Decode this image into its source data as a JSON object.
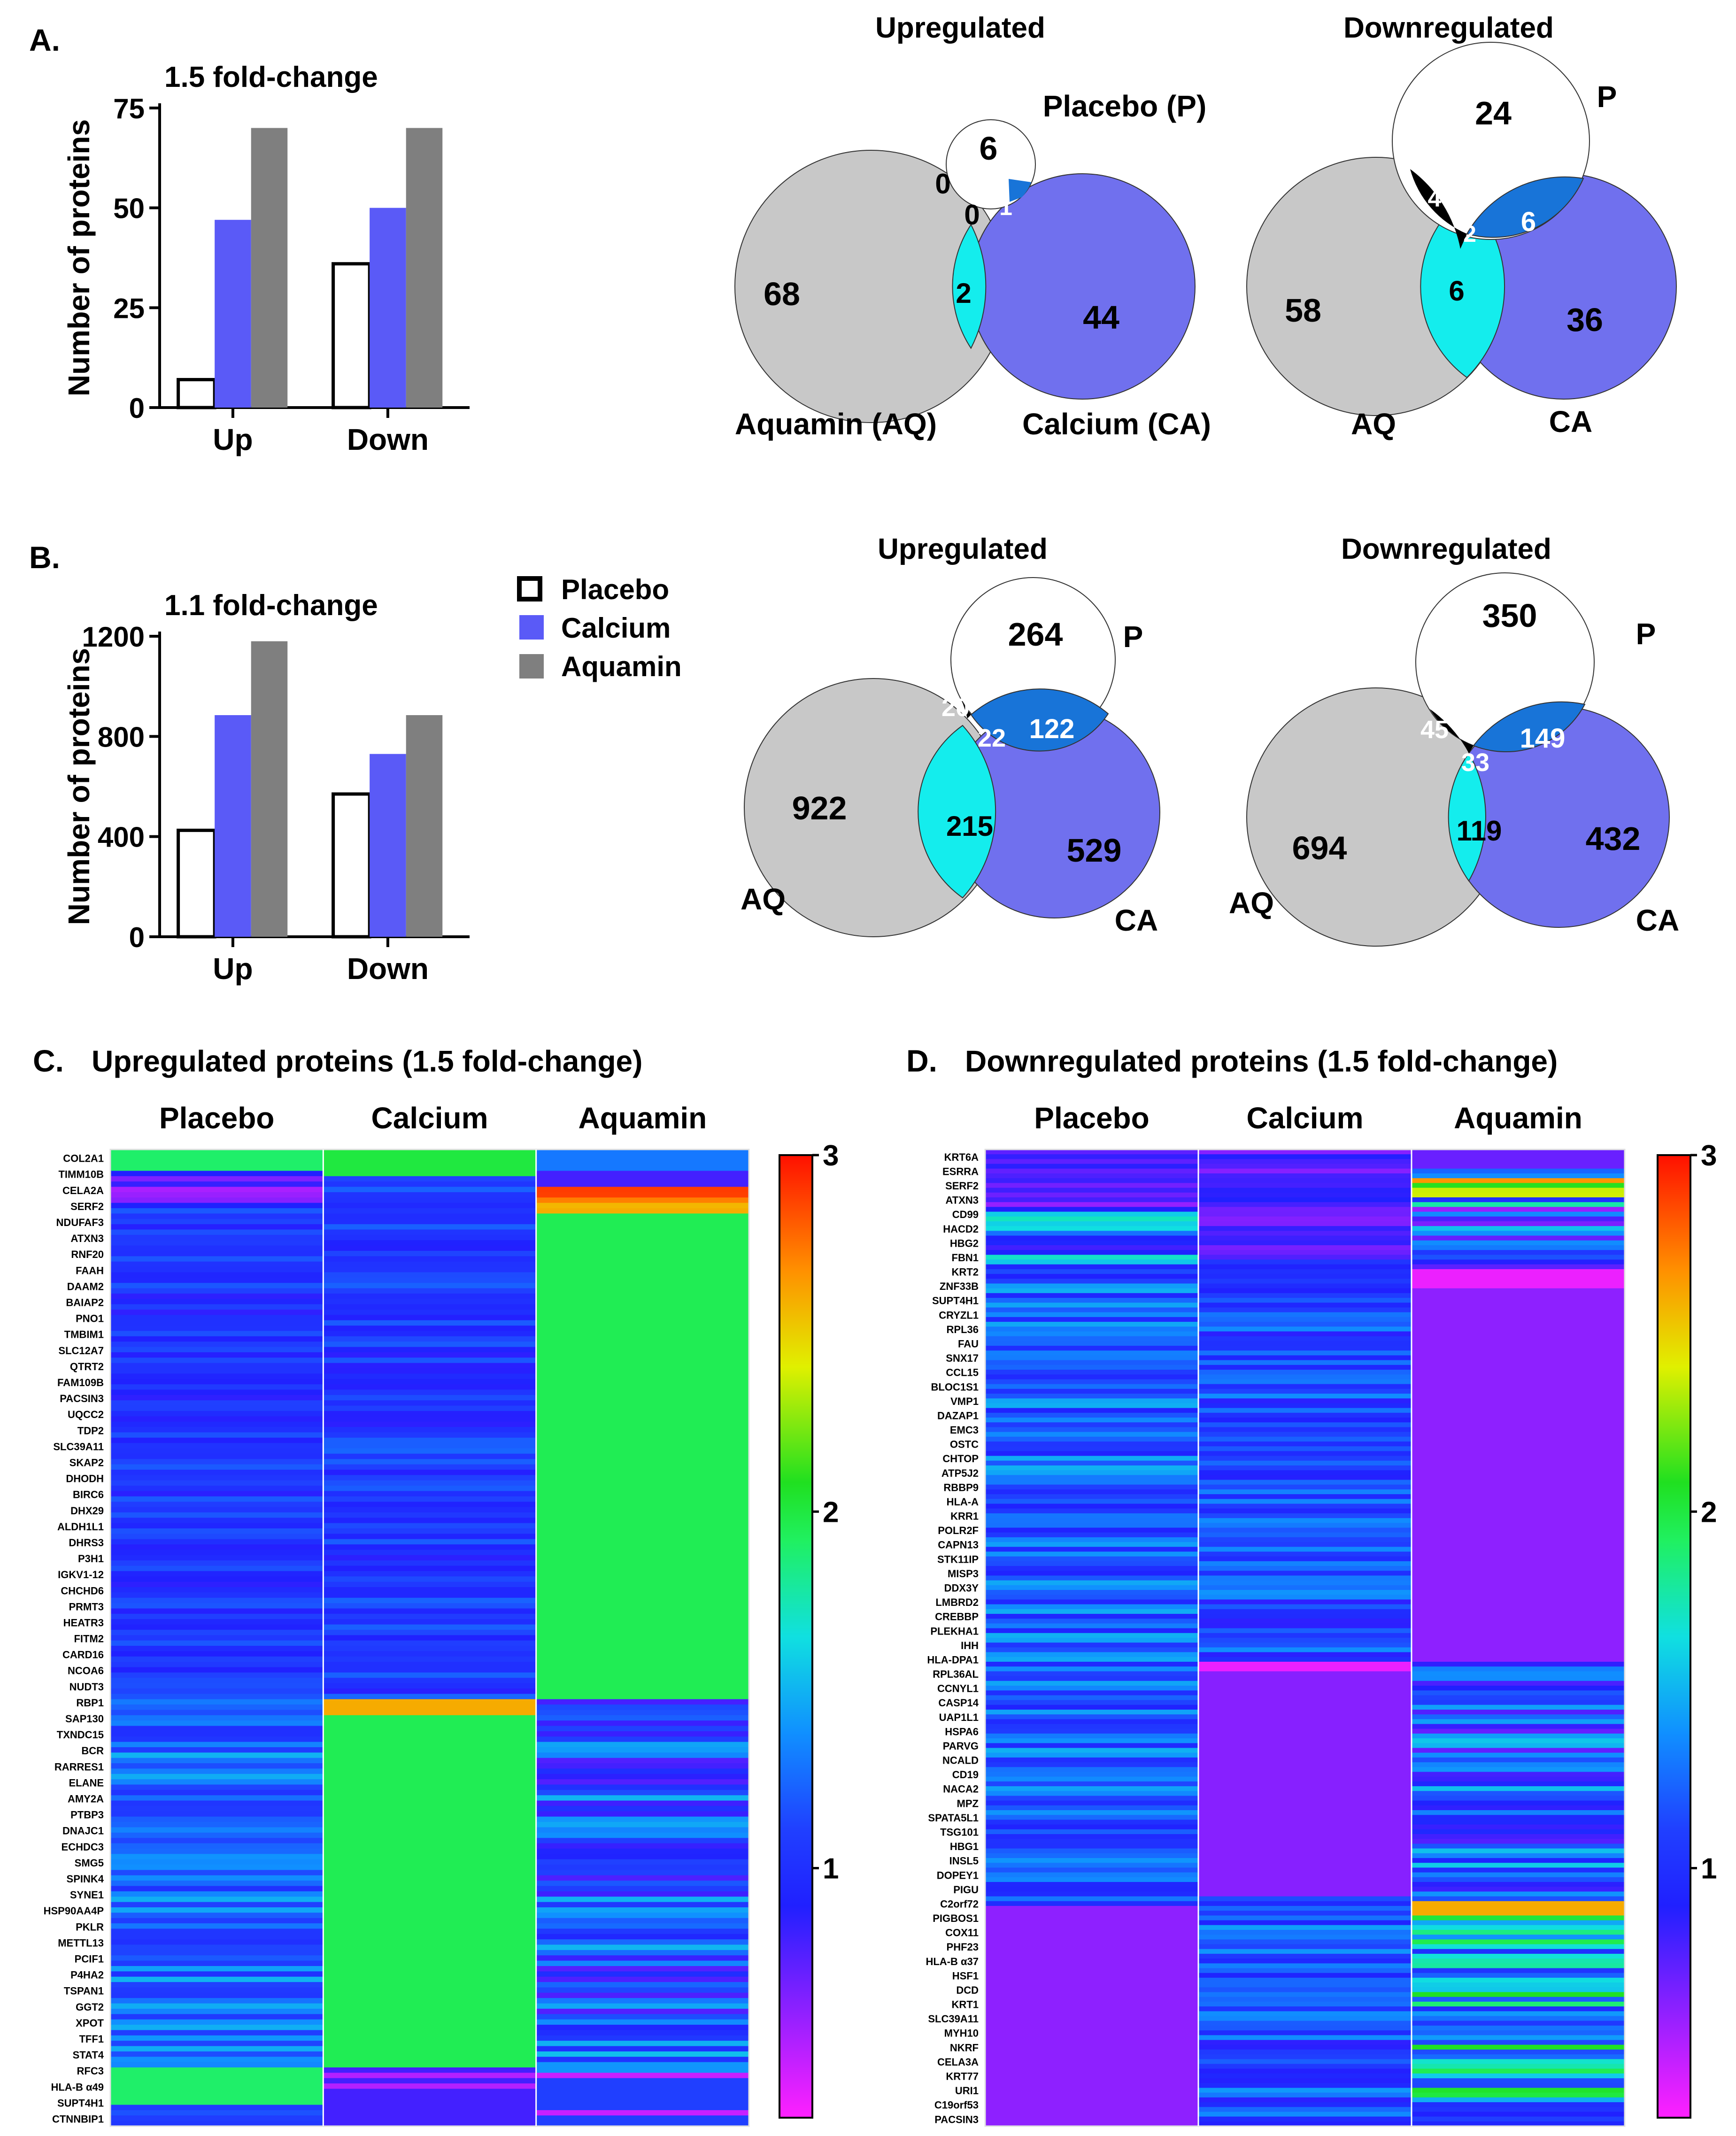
{
  "colors": {
    "placebo": "#ffffff",
    "calcium": "#5a5af7",
    "aquamin": "#7f7f7f",
    "venn_aq": "#c8c8c8",
    "venn_ca": "#7070ee",
    "venn_p": "#ffffff",
    "venn_aq_ca": "#14eded",
    "venn_p_ca": "#1874d8",
    "venn_p_aq": "#000000"
  },
  "panels": {
    "A": "A.",
    "B": "B.",
    "C": "C.",
    "D": "D."
  },
  "legend": [
    "Placebo",
    "Calcium",
    "Aquamin"
  ],
  "chart_data": [
    {
      "id": "A_bar",
      "type": "bar",
      "title": "1.5 fold-change",
      "ylabel": "Number of proteins",
      "xlabel": "",
      "categories": [
        "Up",
        "Down"
      ],
      "ylim": [
        0,
        75
      ],
      "yticks": [
        "0",
        "25",
        "50",
        "75"
      ],
      "series": [
        {
          "name": "Placebo",
          "values": [
            7,
            36
          ]
        },
        {
          "name": "Calcium",
          "values": [
            47,
            50
          ]
        },
        {
          "name": "Aquamin",
          "values": [
            70,
            70
          ]
        }
      ]
    },
    {
      "id": "B_bar",
      "type": "bar",
      "title": "1.1 fold-change",
      "ylabel": "Number of proteins",
      "xlabel": "",
      "categories": [
        "Up",
        "Down"
      ],
      "ylim": [
        0,
        1200
      ],
      "yticks": [
        "0",
        "400",
        "800",
        "1200"
      ],
      "series": [
        {
          "name": "Placebo",
          "values": [
            425,
            570
          ]
        },
        {
          "name": "Calcium",
          "values": [
            885,
            730
          ]
        },
        {
          "name": "Aquamin",
          "values": [
            1180,
            885
          ]
        }
      ]
    },
    {
      "id": "A_venn_up",
      "type": "venn",
      "title": "Upregulated",
      "labels": {
        "aq": "Aquamin (AQ)",
        "ca": "Calcium (CA)",
        "p": "Placebo (P)"
      },
      "regions": {
        "aq_only": "68",
        "ca_only": "44",
        "p_only": "6",
        "aq_ca": "2",
        "p_ca": "1",
        "p_aq": "0",
        "all": "0"
      }
    },
    {
      "id": "A_venn_down",
      "type": "venn",
      "title": "Downregulated",
      "labels": {
        "aq": "AQ",
        "ca": "CA",
        "p": "P"
      },
      "regions": {
        "aq_only": "58",
        "ca_only": "36",
        "p_only": "24",
        "aq_ca": "6",
        "p_ca": "6",
        "p_aq": "4",
        "all": "2"
      }
    },
    {
      "id": "B_venn_up",
      "type": "venn",
      "title": "Upregulated",
      "labels": {
        "aq": "AQ",
        "ca": "CA",
        "p": "P"
      },
      "regions": {
        "aq_only": "922",
        "ca_only": "529",
        "p_only": "264",
        "aq_ca": "215",
        "p_ca": "122",
        "p_aq": "20",
        "all": "22"
      }
    },
    {
      "id": "B_venn_down",
      "type": "venn",
      "title": "Downregulated",
      "labels": {
        "aq": "AQ",
        "ca": "CA",
        "p": "P"
      },
      "regions": {
        "aq_only": "694",
        "ca_only": "432",
        "p_only": "350",
        "aq_ca": "119",
        "p_ca": "149",
        "p_aq": "45",
        "all": "33"
      }
    },
    {
      "id": "C_heatmap",
      "type": "heatmap",
      "title": "Upregulated proteins (1.5 fold-change)",
      "columns": [
        "Placebo",
        "Calcium",
        "Aquamin"
      ],
      "colorbar": {
        "min": 0.3,
        "max": 3,
        "ticks": [
          "1",
          "2",
          "3"
        ]
      },
      "rows": [
        "COL2A1",
        "TIMM10B",
        "CELA2A",
        "SERF2",
        "NDUFAF3",
        "ATXN3",
        "RNF20",
        "FAAH",
        "DAAM2",
        "BAIAP2",
        "PNO1",
        "TMBIM1",
        "SLC12A7",
        "QTRT2",
        "FAM109B",
        "PACSIN3",
        "UQCC2",
        "TDP2",
        "SLC39A11",
        "SKAP2",
        "DHODH",
        "BIRC6",
        "DHX29",
        "ALDH1L1",
        "DHRS3",
        "P3H1",
        "IGKV1-12",
        "CHCHD6",
        "PRMT3",
        "HEATR3",
        "FITM2",
        "CARD16",
        "NCOA6",
        "NUDT3",
        "RBP1",
        "SAP130",
        "TXNDC15",
        "BCR",
        "RARRES1",
        "ELANE",
        "AMY2A",
        "PTBP3",
        "DNAJC1",
        "ECHDC3",
        "SMG5",
        "SPINK4",
        "SYNE1",
        "HSP90AA4P",
        "PKLR",
        "METTL13",
        "PCIF1",
        "P4HA2",
        "TSPAN1",
        "GGT2",
        "XPOT",
        "TFF1",
        "STAT4",
        "RFC3",
        "HLA-B α49",
        "SUPT4H1",
        "CTNNBIP1"
      ]
    },
    {
      "id": "D_heatmap",
      "type": "heatmap",
      "title": "Downregulated proteins (1.5 fold-change)",
      "columns": [
        "Placebo",
        "Calcium",
        "Aquamin"
      ],
      "colorbar": {
        "min": 0.3,
        "max": 3,
        "ticks": [
          "1",
          "2",
          "3"
        ]
      },
      "rows": [
        "KRT6A",
        "ESRRA",
        "SERF2",
        "ATXN3",
        "CD99",
        "HACD2",
        "HBG2",
        "FBN1",
        "KRT2",
        "ZNF33B",
        "SUPT4H1",
        "CRYZL1",
        "RPL36",
        "FAU",
        "SNX17",
        "CCL15",
        "BLOC1S1",
        "VMP1",
        "DAZAP1",
        "EMC3",
        "OSTC",
        "CHTOP",
        "ATP5J2",
        "RBBP9",
        "HLA-A",
        "KRR1",
        "POLR2F",
        "CAPN13",
        "STK11IP",
        "MISP3",
        "DDX3Y",
        "LMBRD2",
        "CREBBP",
        "PLEKHA1",
        "IHH",
        "HLA-DPA1",
        "RPL36AL",
        "CCNYL1",
        "CASP14",
        "UAP1L1",
        "HSPA6",
        "PARVG",
        "NCALD",
        "CD19",
        "NACA2",
        "MPZ",
        "SPATA5L1",
        "TSG101",
        "HBG1",
        "INSL5",
        "DOPEY1",
        "PIGU",
        "C2orf72",
        "PIGBOS1",
        "COX11",
        "PHF23",
        "HLA-B α37",
        "HSF1",
        "DCD",
        "KRT1",
        "SLC39A11",
        "MYH10",
        "NKRF",
        "CELA3A",
        "KRT77",
        "URI1",
        "C19orf53",
        "PACSIN3"
      ]
    }
  ]
}
